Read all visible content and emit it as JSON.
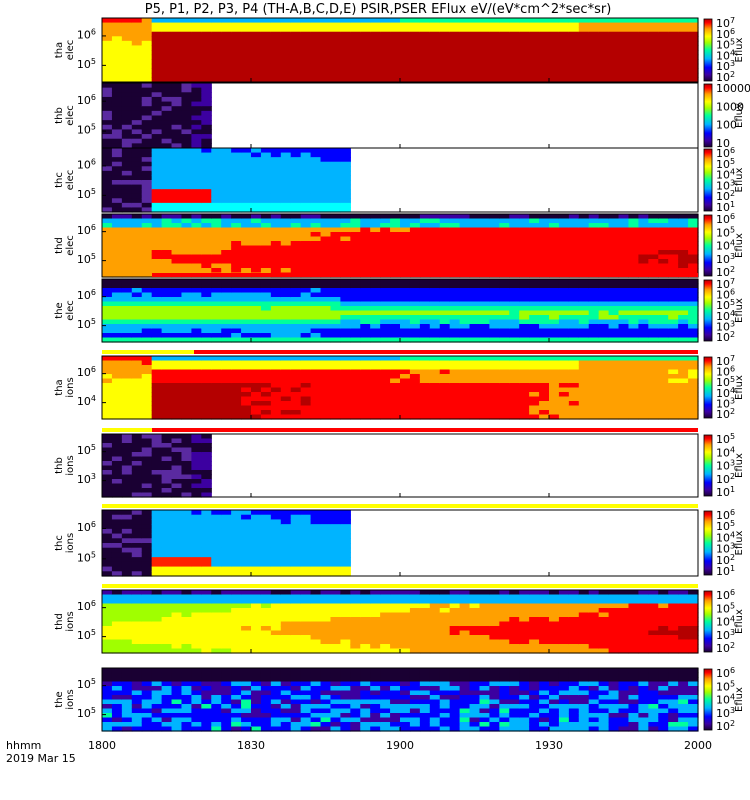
{
  "chart_data": {
    "type": "heatmap",
    "title": "P5, P1, P2, P3, P4 (TH-A,B,C,D,E) PSIR,PSER EFlux eV/(eV*cm^2*sec*sr)",
    "x_ticks": [
      "1800",
      "1830",
      "1900",
      "1930",
      "2000"
    ],
    "x_range": [
      "18:00",
      "20:00"
    ],
    "time_label": "hhmm",
    "date_label": "2019 Mar 15",
    "y_axis_scale": "log",
    "colorbar_label": "Eflux",
    "colormap": [
      "#1a0033",
      "#3c00a0",
      "#0000ff",
      "#00b4ff",
      "#00ff9c",
      "#a0ff00",
      "#ffff00",
      "#ffa000",
      "#ff0000",
      "#b40000"
    ],
    "panels": [
      {
        "probe": "tha",
        "species": "elec",
        "y_ticks": [
          "10^6",
          "10^5"
        ],
        "colorbar_ticks": [
          "10^7",
          "10^6",
          "10^5",
          "10^4",
          "10^3",
          "10^2"
        ],
        "quality_bar": null
      },
      {
        "probe": "thb",
        "species": "elec",
        "y_ticks": [
          "10^6",
          "10^5"
        ],
        "colorbar_ticks": [
          "10000",
          "1000",
          "100",
          "10"
        ],
        "quality_bar": null
      },
      {
        "probe": "thc",
        "species": "elec",
        "y_ticks": [
          "10^6",
          "10^5"
        ],
        "colorbar_ticks": [
          "10^6",
          "10^5",
          "10^4",
          "10^3",
          "10^2",
          "10^1"
        ],
        "quality_bar": null
      },
      {
        "probe": "thd",
        "species": "elec",
        "y_ticks": [
          "10^6",
          "10^5"
        ],
        "colorbar_ticks": [
          "10^6",
          "10^5",
          "10^4",
          "10^3",
          "10^2"
        ],
        "quality_bar": null
      },
      {
        "probe": "the",
        "species": "elec",
        "y_ticks": [
          "10^6",
          "10^5"
        ],
        "colorbar_ticks": [
          "10^7",
          "10^6",
          "10^5",
          "10^4",
          "10^3",
          "10^2"
        ],
        "quality_bar": "red-after-1810"
      },
      {
        "probe": "tha",
        "species": "ions",
        "y_ticks": [
          "10^6",
          "10^4"
        ],
        "colorbar_ticks": [
          "10^7",
          "10^6",
          "10^5",
          "10^4",
          "10^3",
          "10^2"
        ],
        "quality_bar": "yellow-red"
      },
      {
        "probe": "thb",
        "species": "ions",
        "y_ticks": [
          "10^5",
          "10^3"
        ],
        "colorbar_ticks": [
          "10^5",
          "10^4",
          "10^3",
          "10^2",
          "10^1"
        ],
        "quality_bar": "yellow-red"
      },
      {
        "probe": "thc",
        "species": "ions",
        "y_ticks": [
          "10^6",
          "10^5"
        ],
        "colorbar_ticks": [
          "10^6",
          "10^5",
          "10^4",
          "10^3",
          "10^2",
          "10^1"
        ],
        "quality_bar": "yellow"
      },
      {
        "probe": "thd",
        "species": "ions",
        "y_ticks": [
          "10^6",
          "10^5"
        ],
        "colorbar_ticks": [
          "10^6",
          "10^5",
          "10^4",
          "10^3",
          "10^2"
        ],
        "quality_bar": "yellow"
      },
      {
        "probe": "the",
        "species": "ions",
        "y_ticks": [
          "10^5",
          "10^5"
        ],
        "colorbar_ticks": [
          "10^6",
          "10^5",
          "10^4",
          "10^3",
          "10^2"
        ],
        "quality_bar": null
      }
    ]
  }
}
